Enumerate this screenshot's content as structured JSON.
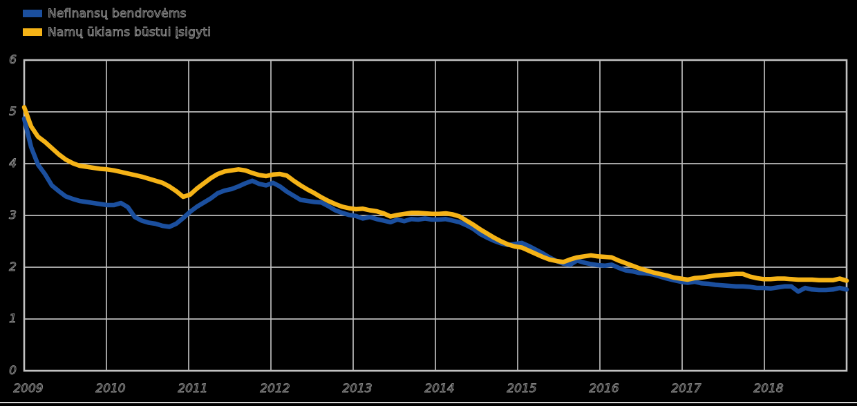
{
  "legend": {
    "items": [
      {
        "label": "Nefinansų bendrovėms",
        "color": "#1B4F9E"
      },
      {
        "label": "Namų ūkiams būstui įsigyti",
        "color": "#F5B317"
      }
    ]
  },
  "axes": {
    "y_tick_labels": [
      "6",
      "5",
      "4",
      "3",
      "2",
      "1",
      "0"
    ],
    "x_tick_labels": [
      "2009",
      "2010",
      "2011",
      "2012",
      "2013",
      "2014",
      "2015",
      "2016",
      "2017",
      "2018"
    ]
  },
  "style": {
    "background_color": "#000000",
    "gridline_color": "#BDBDBD",
    "border_color": "#C2C2C2",
    "footer_line_color": "#D6D6D6"
  },
  "chart_data": {
    "type": "line",
    "title": "",
    "xlabel": "",
    "ylabel": "",
    "ylim": [
      0,
      6
    ],
    "y_ticks": [
      0,
      1,
      2,
      3,
      4,
      5,
      6
    ],
    "grid": "on",
    "legend_position": "top-left",
    "x_unit": "month",
    "x_start": "2009-01",
    "x_end": "2018-12",
    "x_year_ticks": [
      2009,
      2010,
      2011,
      2012,
      2013,
      2014,
      2015,
      2016,
      2017,
      2018
    ],
    "series": [
      {
        "name": "Nefinansų bendrovėms",
        "color": "#1B4F9E",
        "values": [
          4.87,
          4.32,
          3.98,
          3.8,
          3.58,
          3.47,
          3.37,
          3.32,
          3.28,
          3.26,
          3.24,
          3.22,
          3.2,
          3.2,
          3.24,
          3.16,
          2.97,
          2.9,
          2.86,
          2.84,
          2.8,
          2.78,
          2.84,
          2.95,
          3.07,
          3.17,
          3.25,
          3.33,
          3.43,
          3.48,
          3.51,
          3.56,
          3.62,
          3.67,
          3.61,
          3.58,
          3.63,
          3.56,
          3.46,
          3.38,
          3.3,
          3.28,
          3.26,
          3.25,
          3.18,
          3.1,
          3.05,
          3.01,
          2.99,
          2.94,
          2.97,
          2.93,
          2.9,
          2.87,
          2.92,
          2.89,
          2.93,
          2.92,
          2.94,
          2.92,
          2.92,
          2.93,
          2.9,
          2.87,
          2.81,
          2.74,
          2.64,
          2.57,
          2.51,
          2.46,
          2.43,
          2.45,
          2.47,
          2.41,
          2.34,
          2.27,
          2.19,
          2.12,
          2.07,
          2.05,
          2.13,
          2.09,
          2.06,
          2.04,
          2.03,
          2.05,
          1.99,
          1.94,
          1.92,
          1.89,
          1.88,
          1.86,
          1.82,
          1.78,
          1.75,
          1.72,
          1.7,
          1.72,
          1.69,
          1.68,
          1.66,
          1.65,
          1.64,
          1.63,
          1.63,
          1.62,
          1.6,
          1.6,
          1.59,
          1.61,
          1.63,
          1.63,
          1.53,
          1.6,
          1.57,
          1.56,
          1.56,
          1.57,
          1.6,
          1.57
        ]
      },
      {
        "name": "Namų ūkiams būstui įsigyti",
        "color": "#F5B317",
        "values": [
          5.09,
          4.72,
          4.52,
          4.42,
          4.3,
          4.18,
          4.08,
          4.01,
          3.96,
          3.94,
          3.92,
          3.9,
          3.89,
          3.87,
          3.84,
          3.81,
          3.78,
          3.75,
          3.71,
          3.67,
          3.63,
          3.56,
          3.47,
          3.36,
          3.4,
          3.52,
          3.62,
          3.72,
          3.8,
          3.85,
          3.87,
          3.89,
          3.87,
          3.82,
          3.78,
          3.76,
          3.79,
          3.8,
          3.77,
          3.67,
          3.58,
          3.5,
          3.43,
          3.35,
          3.28,
          3.22,
          3.17,
          3.14,
          3.12,
          3.13,
          3.1,
          3.08,
          3.04,
          2.98,
          3.01,
          3.03,
          3.05,
          3.05,
          3.04,
          3.03,
          3.03,
          3.04,
          3.02,
          2.98,
          2.9,
          2.82,
          2.73,
          2.65,
          2.57,
          2.5,
          2.44,
          2.4,
          2.38,
          2.32,
          2.26,
          2.2,
          2.15,
          2.12,
          2.1,
          2.15,
          2.19,
          2.21,
          2.23,
          2.21,
          2.2,
          2.19,
          2.13,
          2.08,
          2.03,
          1.98,
          1.94,
          1.9,
          1.87,
          1.84,
          1.8,
          1.78,
          1.76,
          1.79,
          1.8,
          1.82,
          1.84,
          1.85,
          1.86,
          1.87,
          1.87,
          1.82,
          1.79,
          1.77,
          1.77,
          1.78,
          1.78,
          1.77,
          1.76,
          1.76,
          1.76,
          1.75,
          1.75,
          1.75,
          1.78,
          1.74
        ]
      }
    ]
  }
}
